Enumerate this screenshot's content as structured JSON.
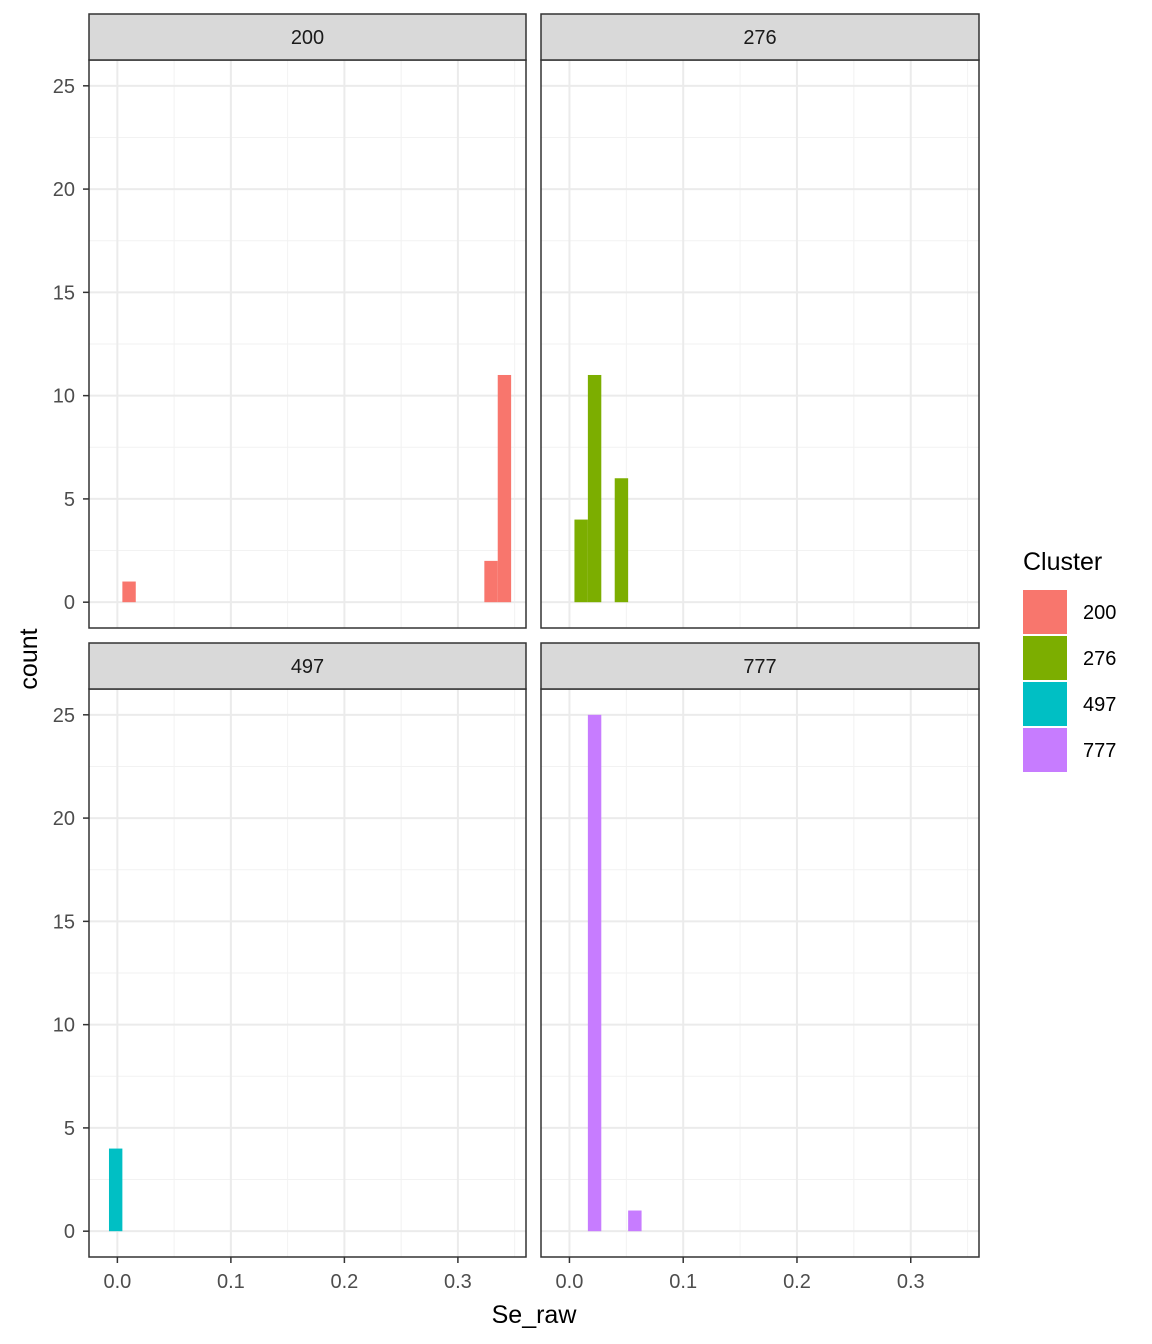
{
  "chart_data": {
    "type": "bar",
    "facet_by": "Cluster",
    "xlabel": "Se_raw",
    "ylabel": "count",
    "xlim": [
      -0.025,
      0.36
    ],
    "ylim": [
      -1.25,
      26.25
    ],
    "x_ticks": [
      0.0,
      0.1,
      0.2,
      0.3
    ],
    "x_tick_labels": [
      "0.0",
      "0.1",
      "0.2",
      "0.3"
    ],
    "y_ticks": [
      0,
      5,
      10,
      15,
      20,
      25
    ],
    "y_tick_labels": [
      "0",
      "5",
      "10",
      "15",
      "20",
      "25"
    ],
    "bin_width": 0.0118,
    "grid": true,
    "legend": {
      "title": "Cluster",
      "position": "right",
      "entries": [
        {
          "label": "200",
          "color": "#F8766D"
        },
        {
          "label": "276",
          "color": "#7CAE00"
        },
        {
          "label": "497",
          "color": "#00BFC4"
        },
        {
          "label": "777",
          "color": "#C77CFF"
        }
      ]
    },
    "panels": [
      {
        "strip": "200",
        "color": "#F8766D",
        "bars": [
          {
            "x": 0.0103,
            "count": 1
          },
          {
            "x": 0.3292,
            "count": 2
          },
          {
            "x": 0.341,
            "count": 11
          }
        ]
      },
      {
        "strip": "276",
        "color": "#7CAE00",
        "bars": [
          {
            "x": 0.0103,
            "count": 4
          },
          {
            "x": 0.0221,
            "count": 11
          },
          {
            "x": 0.0457,
            "count": 6
          }
        ]
      },
      {
        "strip": "497",
        "color": "#00BFC4",
        "bars": [
          {
            "x": -0.0015,
            "count": 4
          }
        ]
      },
      {
        "strip": "777",
        "color": "#C77CFF",
        "bars": [
          {
            "x": 0.0221,
            "count": 25
          },
          {
            "x": 0.0575,
            "count": 1
          }
        ]
      }
    ]
  }
}
